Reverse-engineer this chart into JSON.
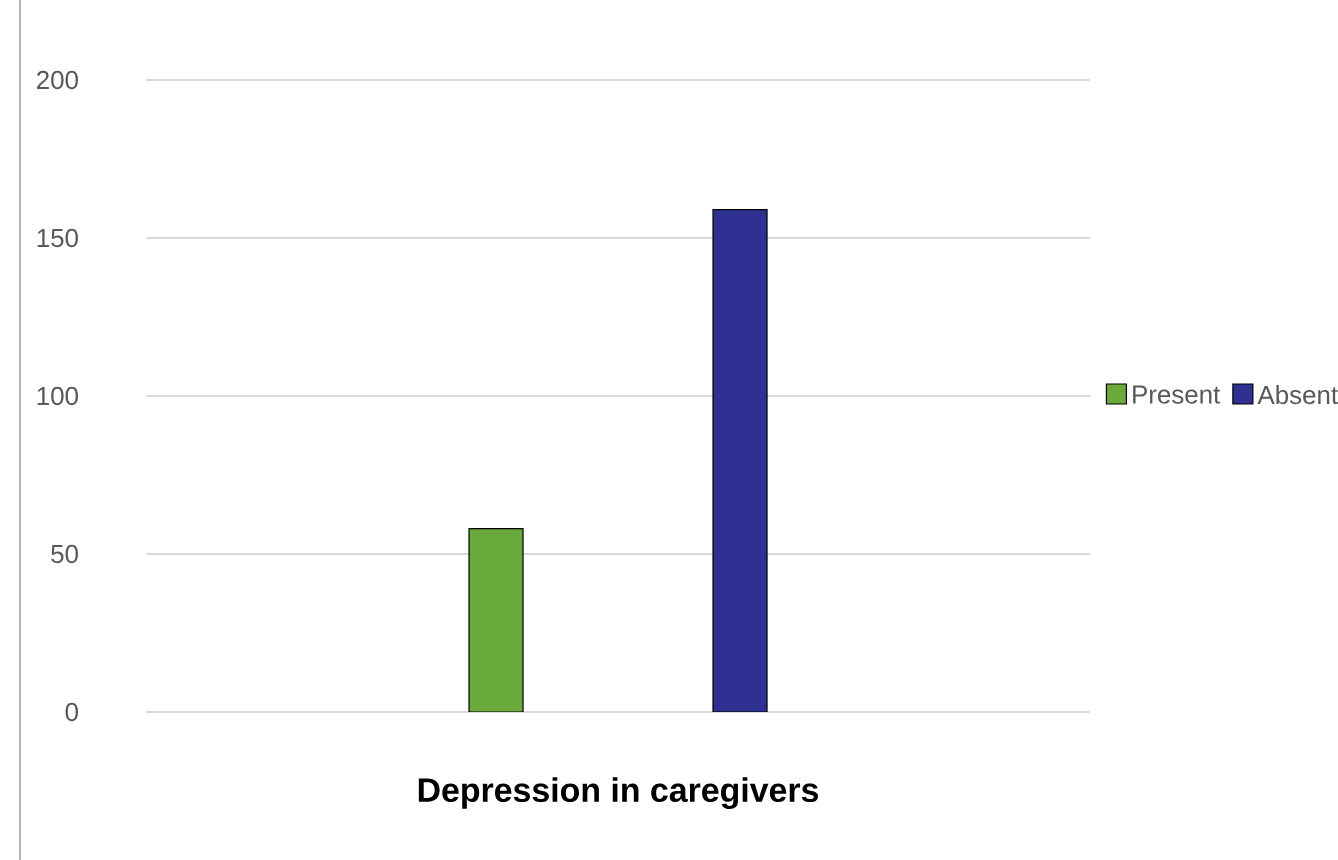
{
  "chart_data": {
    "type": "bar",
    "xlabel": "Depression in caregivers",
    "categories": [
      null
    ],
    "series": [
      {
        "name": "Present",
        "color": "#6aaa3a",
        "values": [
          58
        ]
      },
      {
        "name": "Absent",
        "color": "#2e3192",
        "values": [
          159
        ]
      }
    ],
    "ylim": [
      0,
      200
    ],
    "yticks": [
      0,
      50,
      100,
      150,
      200
    ],
    "grid": "y",
    "legend": "right"
  }
}
